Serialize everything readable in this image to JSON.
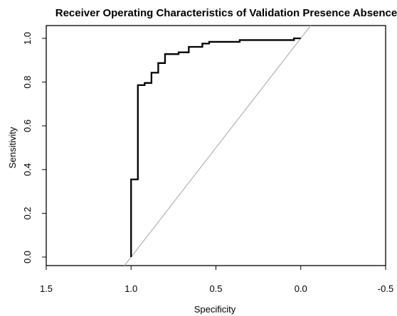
{
  "chart_data": {
    "type": "line",
    "title": "Receiver Operating Characteristics of Validation Presence Absence",
    "xlabel": "Specificity",
    "ylabel": "Sensitivity",
    "xlim": [
      1.5,
      -0.5
    ],
    "ylim": [
      0.0,
      1.0
    ],
    "x_ticks": [
      1.5,
      1.0,
      0.5,
      0.0,
      -0.5
    ],
    "x_tick_labels": [
      "1.5",
      "1.0",
      "0.5",
      "0.0",
      "-0.5"
    ],
    "y_ticks": [
      0.0,
      0.2,
      0.4,
      0.6,
      0.8,
      1.0
    ],
    "y_tick_labels": [
      "0.0",
      "0.2",
      "0.4",
      "0.6",
      "0.8",
      "1.0"
    ],
    "grid": false,
    "reference_line": {
      "x": [
        1.0,
        0.0
      ],
      "y": [
        0.0,
        1.0
      ],
      "color": "#b3b3b3"
    },
    "series": [
      {
        "color": "#000000",
        "x": [
          1.0,
          1.0,
          0.96,
          0.96,
          0.92,
          0.92,
          0.88,
          0.88,
          0.84,
          0.84,
          0.8,
          0.8,
          0.72,
          0.72,
          0.66,
          0.66,
          0.58,
          0.58,
          0.54,
          0.54,
          0.36,
          0.36,
          0.04,
          0.04,
          0.0
        ],
        "y": [
          0.0,
          0.355,
          0.355,
          0.786,
          0.786,
          0.796,
          0.796,
          0.843,
          0.843,
          0.887,
          0.887,
          0.928,
          0.928,
          0.936,
          0.936,
          0.961,
          0.961,
          0.976,
          0.976,
          0.984,
          0.984,
          0.992,
          0.992,
          1.0,
          1.0
        ]
      }
    ]
  }
}
